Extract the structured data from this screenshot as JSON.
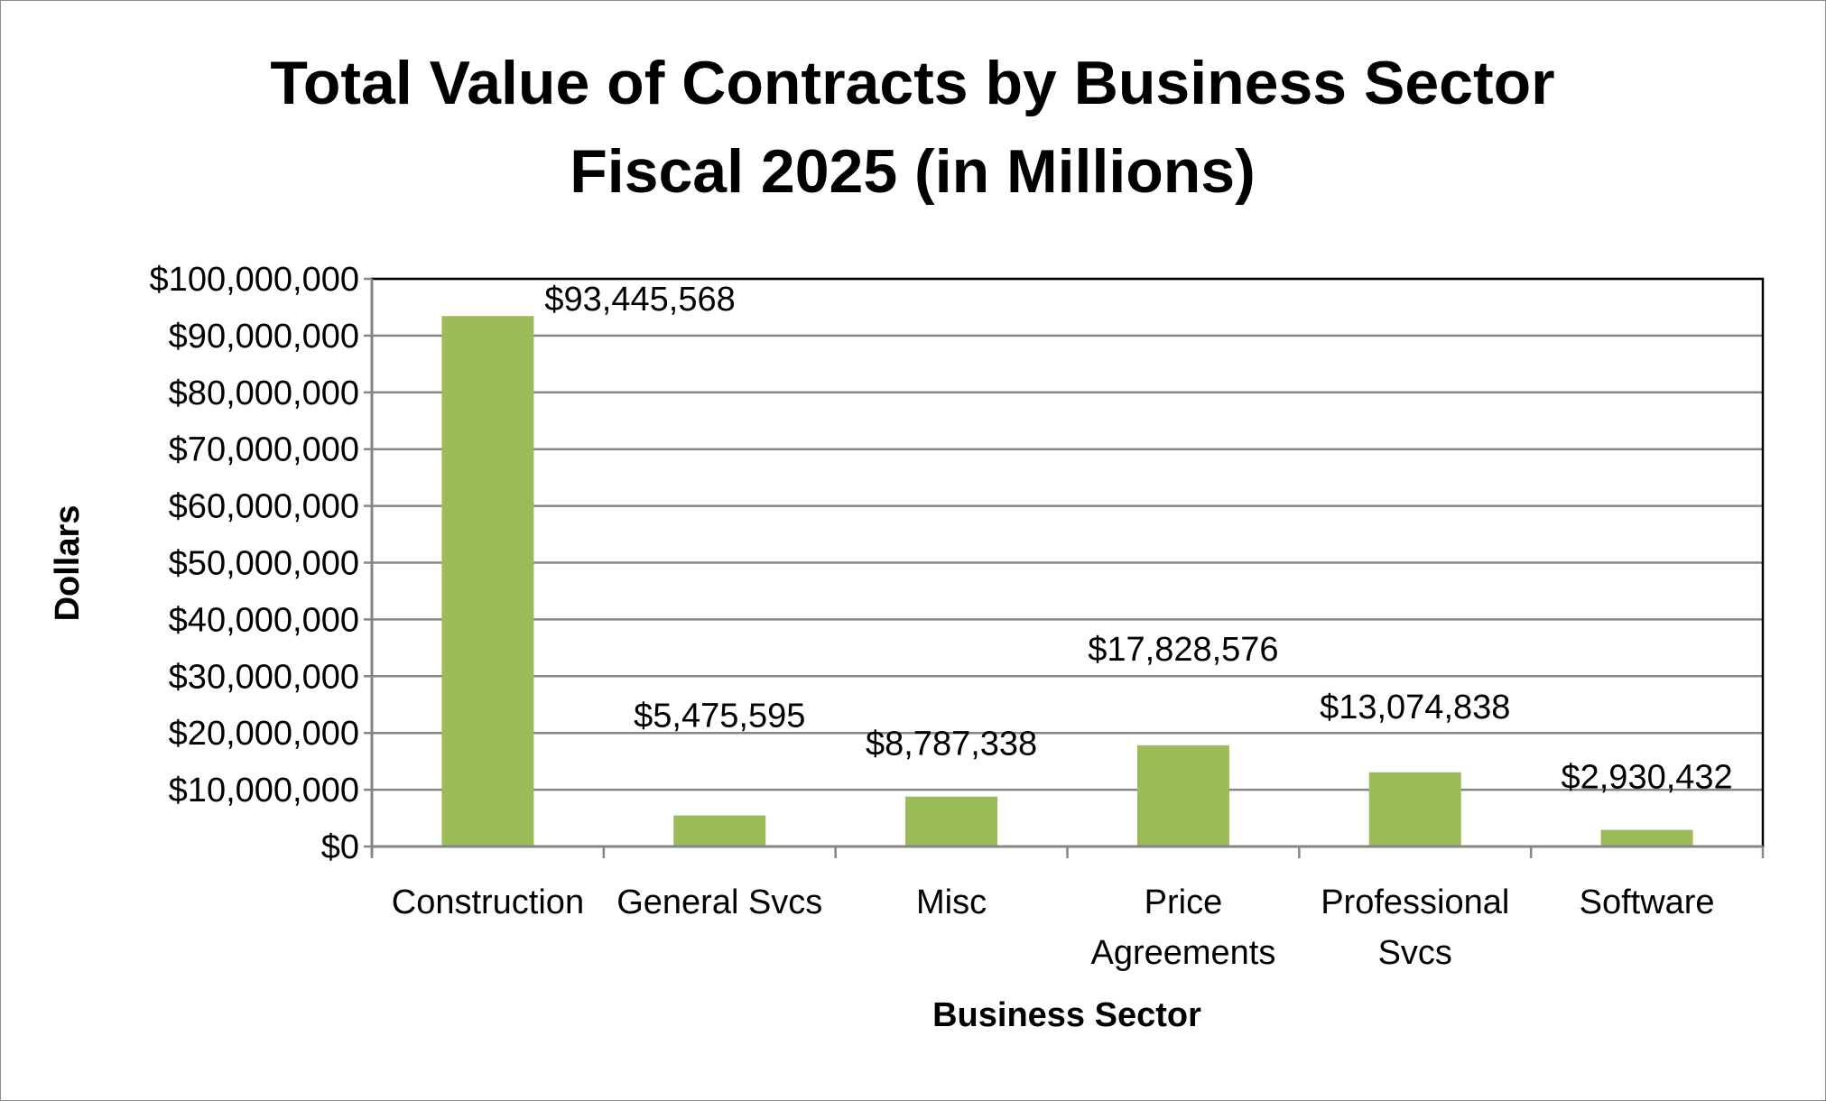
{
  "chart_data": {
    "type": "bar",
    "title_lines": [
      "Total Value of Contracts by Business Sector",
      "Fiscal 2025 (in Millions)"
    ],
    "xlabel": "Business Sector",
    "ylabel": "Dollars",
    "categories": [
      [
        "Construction"
      ],
      [
        "General Svcs"
      ],
      [
        "Misc"
      ],
      [
        "Price",
        "Agreements"
      ],
      [
        "Professional",
        "Svcs"
      ],
      [
        "Software"
      ]
    ],
    "values": [
      93445568,
      5475595,
      8787338,
      17828576,
      13074838,
      2930432
    ],
    "data_labels": [
      "$93,445,568",
      "$5,475,595",
      "$8,787,338",
      "$17,828,576",
      "$13,074,838",
      "$2,930,432"
    ],
    "ylim": [
      0,
      100000000
    ],
    "y_ticks": [
      0,
      10000000,
      20000000,
      30000000,
      40000000,
      50000000,
      60000000,
      70000000,
      80000000,
      90000000,
      100000000
    ],
    "y_tick_labels": [
      "$0",
      "$10,000,000",
      "$20,000,000",
      "$30,000,000",
      "$40,000,000",
      "$50,000,000",
      "$60,000,000",
      "$70,000,000",
      "$80,000,000",
      "$90,000,000",
      "$100,000,000"
    ],
    "grid": true,
    "legend": "none",
    "colors": {
      "bar": "#9bbb59",
      "grid": "#868686",
      "axis": "#868686",
      "frame": "#000000"
    }
  }
}
